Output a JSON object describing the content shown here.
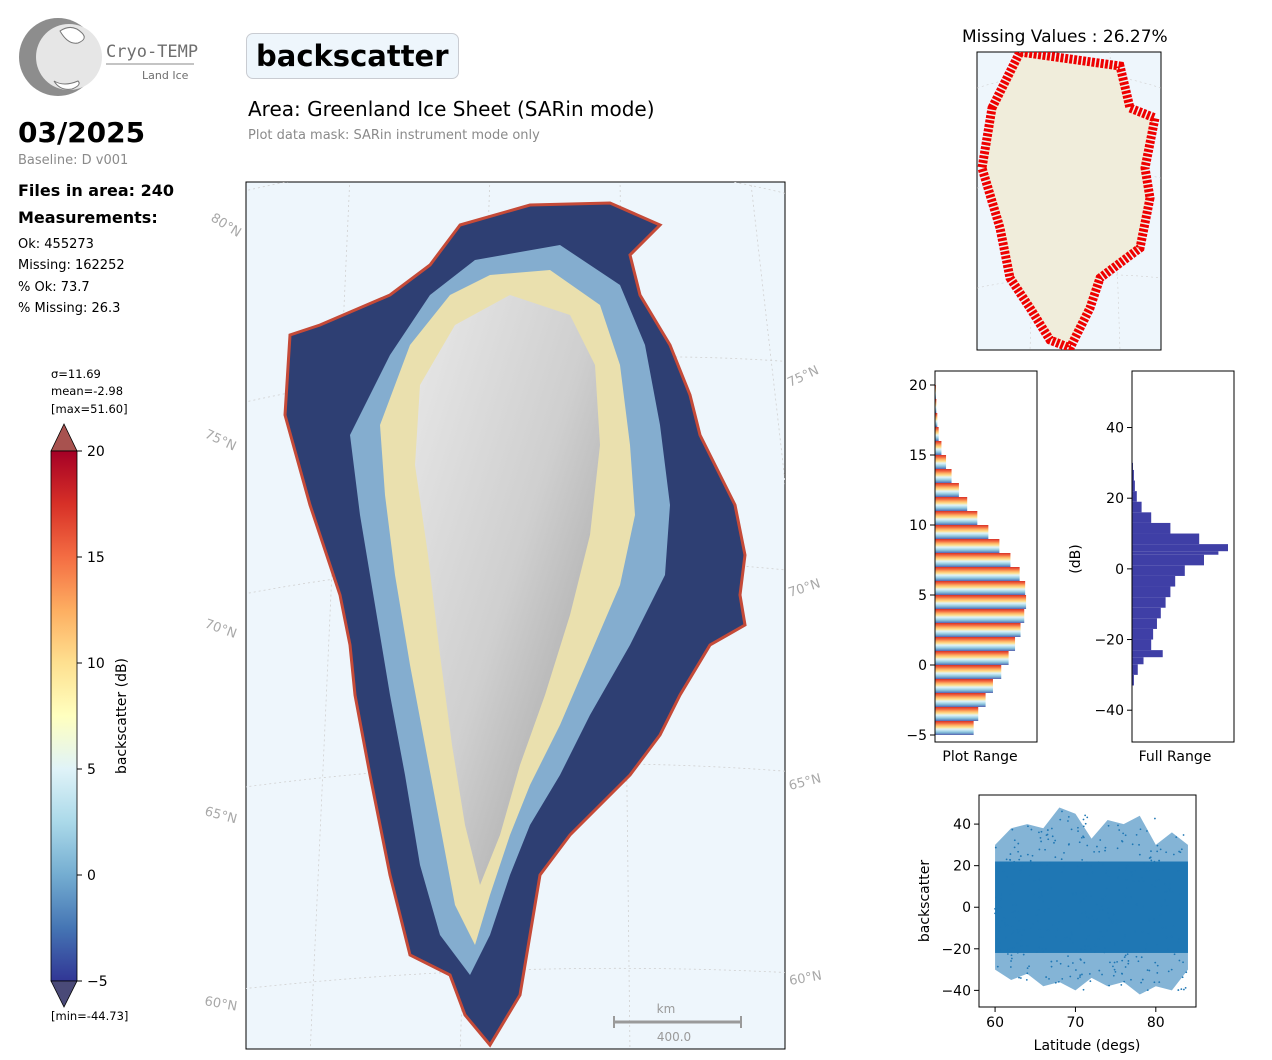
{
  "logo": {
    "name": "Cryo-TEMPO",
    "subtitle": "Land Ice"
  },
  "header": {
    "parameter": "backscatter",
    "date": "03/2025",
    "baseline": "Baseline: D v001",
    "area": "Area: Greenland Ice Sheet (SARin mode)",
    "mask": "Plot data mask: SARin instrument mode only"
  },
  "stats": {
    "files": "Files in area: 240",
    "measurements_label": "Measurements:",
    "ok": "Ok: 455273",
    "missing": "Missing: 162252",
    "pct_ok": "% Ok: 73.7",
    "pct_missing": "% Missing: 26.3"
  },
  "colorbar": {
    "sigma": "σ=11.69",
    "mean": "mean=-2.98",
    "max": "[max=51.60]",
    "min": "[min=-44.73]",
    "label": "backscatter (dB)",
    "ticks": [
      "20",
      "15",
      "10",
      "5",
      "0",
      "−5"
    ]
  },
  "map": {
    "lat_labels_left": [
      "80°N",
      "75°N",
      "70°N",
      "65°N",
      "60°N"
    ],
    "lat_labels_right": [
      "75°N",
      "70°N",
      "65°N",
      "60°N"
    ],
    "scalebar_unit": "km",
    "scalebar_value": "400.0"
  },
  "missing_map": {
    "title": "Missing Values : 26.27%"
  },
  "colors": {
    "ocean": "#eef6fc",
    "land": "#f0eddb",
    "missing": "#ee0000",
    "hist_full": "#3f3fa6",
    "scatter": "#1f77b4"
  },
  "chart_data": [
    {
      "type": "bar",
      "title": "",
      "xlabel": "Plot Range",
      "ylabel": "",
      "orientation": "horizontal",
      "ylim": [
        -5.5,
        21
      ],
      "yticks": [
        "20",
        "15",
        "10",
        "5",
        "0",
        "−5"
      ],
      "bins": [
        -5,
        -4,
        -3,
        -2,
        -1,
        0,
        1,
        2,
        3,
        4,
        5,
        6,
        7,
        8,
        9,
        10,
        11,
        12,
        13,
        14,
        15,
        16,
        17,
        18,
        19,
        20
      ],
      "values": [
        0.42,
        0.47,
        0.55,
        0.63,
        0.72,
        0.8,
        0.87,
        0.93,
        0.97,
        0.99,
        0.98,
        0.92,
        0.82,
        0.7,
        0.58,
        0.46,
        0.35,
        0.26,
        0.18,
        0.12,
        0.07,
        0.04,
        0.025,
        0.015,
        0.01,
        0.005
      ]
    },
    {
      "type": "bar",
      "title": "",
      "xlabel": "Full Range",
      "ylabel": "(dB)",
      "orientation": "horizontal",
      "ylim": [
        -49,
        56
      ],
      "yticks": [
        "40",
        "20",
        "0",
        "−20",
        "−40"
      ],
      "bins": [
        -33,
        -30,
        -27,
        -25,
        -23,
        -20,
        -17,
        -14,
        -11,
        -8,
        -5,
        -2,
        1,
        4,
        5,
        7,
        10,
        13,
        16,
        19,
        22,
        25,
        28,
        30
      ],
      "values": [
        0.02,
        0.06,
        0.12,
        0.32,
        0.2,
        0.22,
        0.26,
        0.3,
        0.35,
        0.4,
        0.45,
        0.55,
        0.75,
        0.9,
        1.0,
        0.7,
        0.4,
        0.2,
        0.1,
        0.05,
        0.03,
        0.02,
        0.01,
        0.005
      ]
    },
    {
      "type": "scatter",
      "title": "",
      "xlabel": "Latitude (degs)",
      "ylabel": "backscatter",
      "xlim": [
        58,
        85
      ],
      "ylim": [
        -48,
        54
      ],
      "xticks": [
        "60",
        "70",
        "80"
      ],
      "yticks": [
        "40",
        "20",
        "0",
        "−20",
        "−40"
      ],
      "upper_envelope": [
        [
          60,
          30
        ],
        [
          62,
          38
        ],
        [
          64,
          40
        ],
        [
          66,
          38
        ],
        [
          68,
          48
        ],
        [
          70,
          45
        ],
        [
          72,
          33
        ],
        [
          74,
          42
        ],
        [
          76,
          40
        ],
        [
          78,
          44
        ],
        [
          80,
          30
        ],
        [
          82,
          36
        ],
        [
          84,
          30
        ]
      ],
      "lower_envelope": [
        [
          60,
          -30
        ],
        [
          62,
          -35
        ],
        [
          64,
          -32
        ],
        [
          66,
          -38
        ],
        [
          68,
          -36
        ],
        [
          70,
          -40
        ],
        [
          72,
          -34
        ],
        [
          74,
          -38
        ],
        [
          76,
          -36
        ],
        [
          78,
          -42
        ],
        [
          80,
          -38
        ],
        [
          82,
          -40
        ],
        [
          84,
          -30
        ]
      ],
      "dense_band": [
        -22,
        22
      ]
    }
  ]
}
